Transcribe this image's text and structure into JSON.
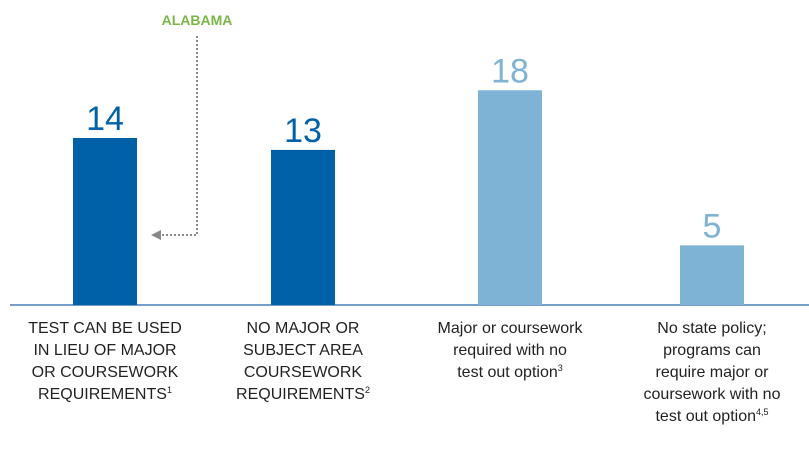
{
  "chart_data": {
    "type": "bar",
    "categories": [
      [
        "TEST CAN BE USED",
        "IN LIEU OF MAJOR",
        "OR COURSEWORK",
        "REQUIREMENTS"
      ],
      [
        "NO MAJOR OR",
        "SUBJECT AREA",
        "COURSEWORK",
        "REQUIREMENTS"
      ],
      [
        "Major or coursework",
        "required with no",
        "test out option"
      ],
      [
        "No state policy;",
        "programs can",
        "require major or",
        "coursework with no",
        "test out option"
      ]
    ],
    "category_notes": [
      "1",
      "2",
      "3",
      "4,5"
    ],
    "values": [
      14,
      13,
      18,
      5
    ],
    "colors": [
      "#0061a8",
      "#0061a8",
      "#7fb3d5",
      "#7fb3d5"
    ],
    "annotation": {
      "text": "ALABAMA",
      "category": 0,
      "color": "#7ab648"
    }
  }
}
